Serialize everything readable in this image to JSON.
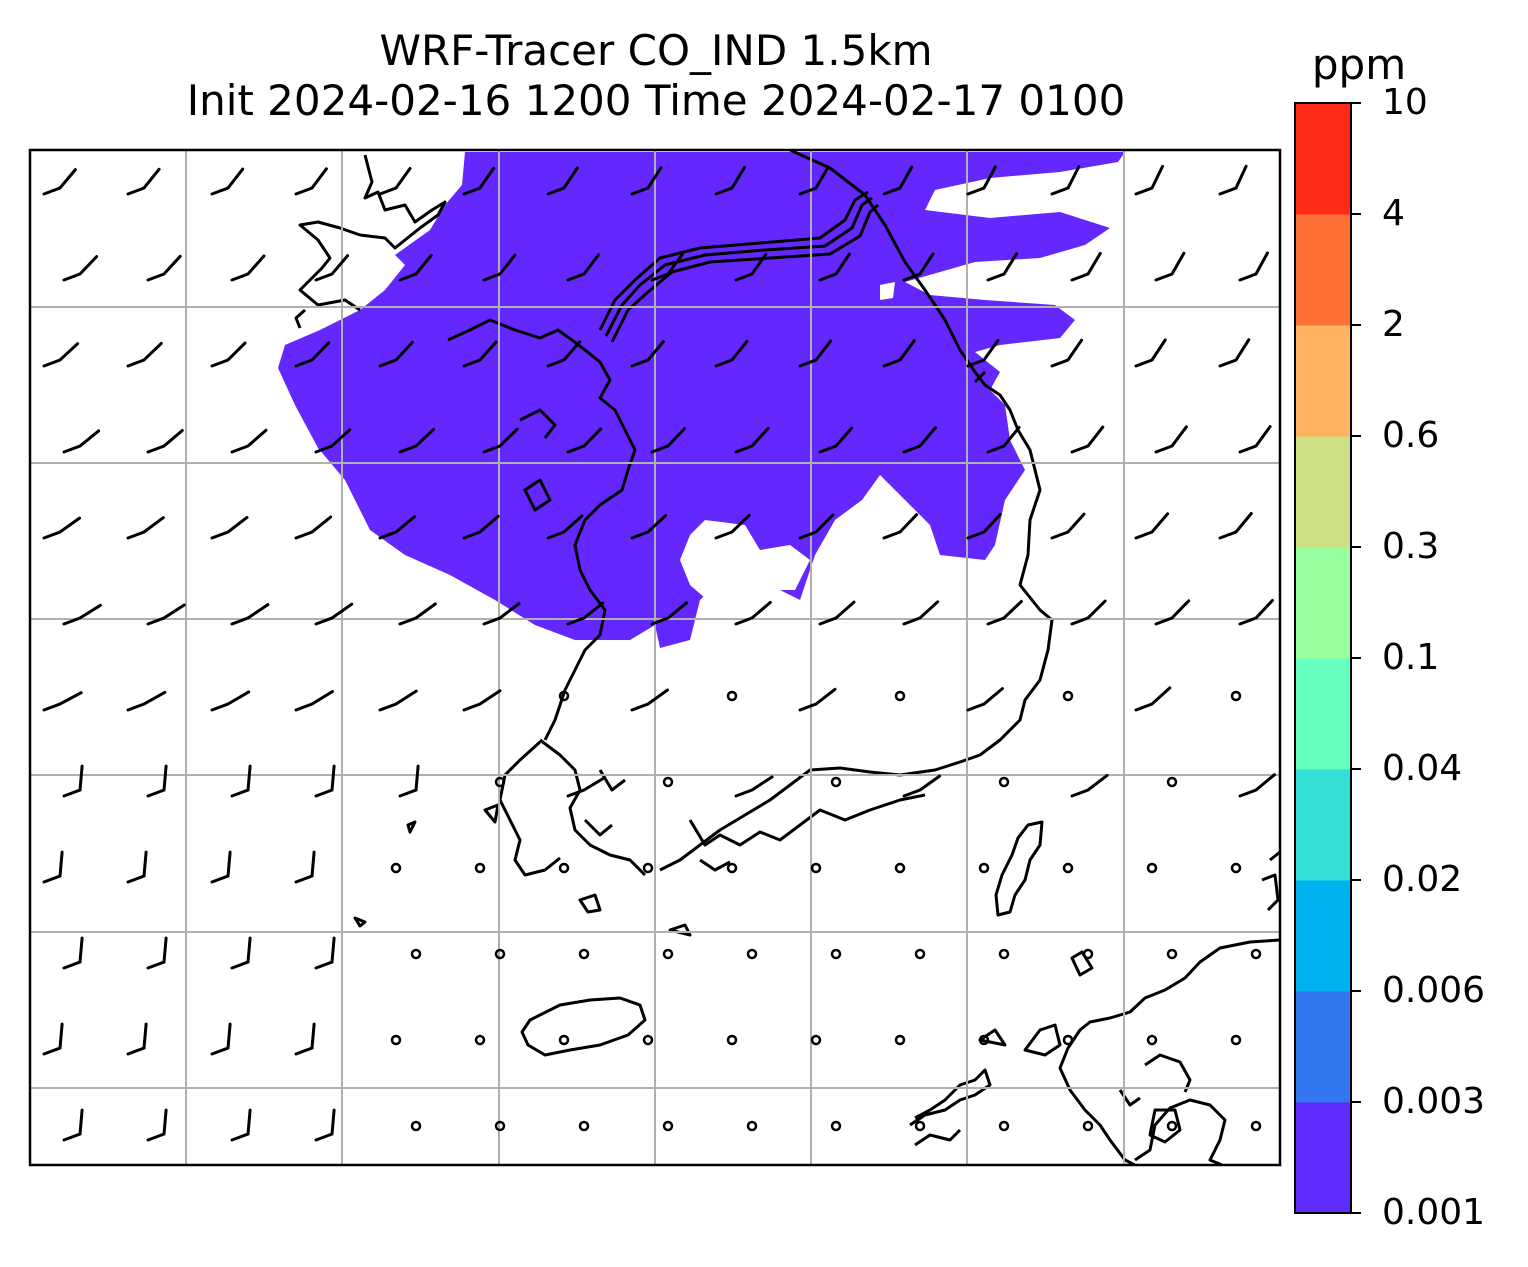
{
  "title": {
    "line1": "WRF-Tracer CO_IND 1.5km",
    "line2": "Init 2024-02-16 1200 Time 2024-02-17 0100"
  },
  "colorbar": {
    "unit": "ppm",
    "levels": [
      "0.001",
      "0.003",
      "0.006",
      "0.02",
      "0.04",
      "0.1",
      "0.3",
      "0.6",
      "2",
      "4",
      "10"
    ],
    "colors": [
      "#5f2bff",
      "#3377f0",
      "#00b3ee",
      "#33dfd7",
      "#66ffbf",
      "#99ff9f",
      "#cde184",
      "#ffb362",
      "#ff7035",
      "#ff2b16"
    ]
  },
  "map": {
    "plume_color": "#6428ff",
    "grid_color": "#b0b0b0",
    "coast_color": "#000000"
  }
}
